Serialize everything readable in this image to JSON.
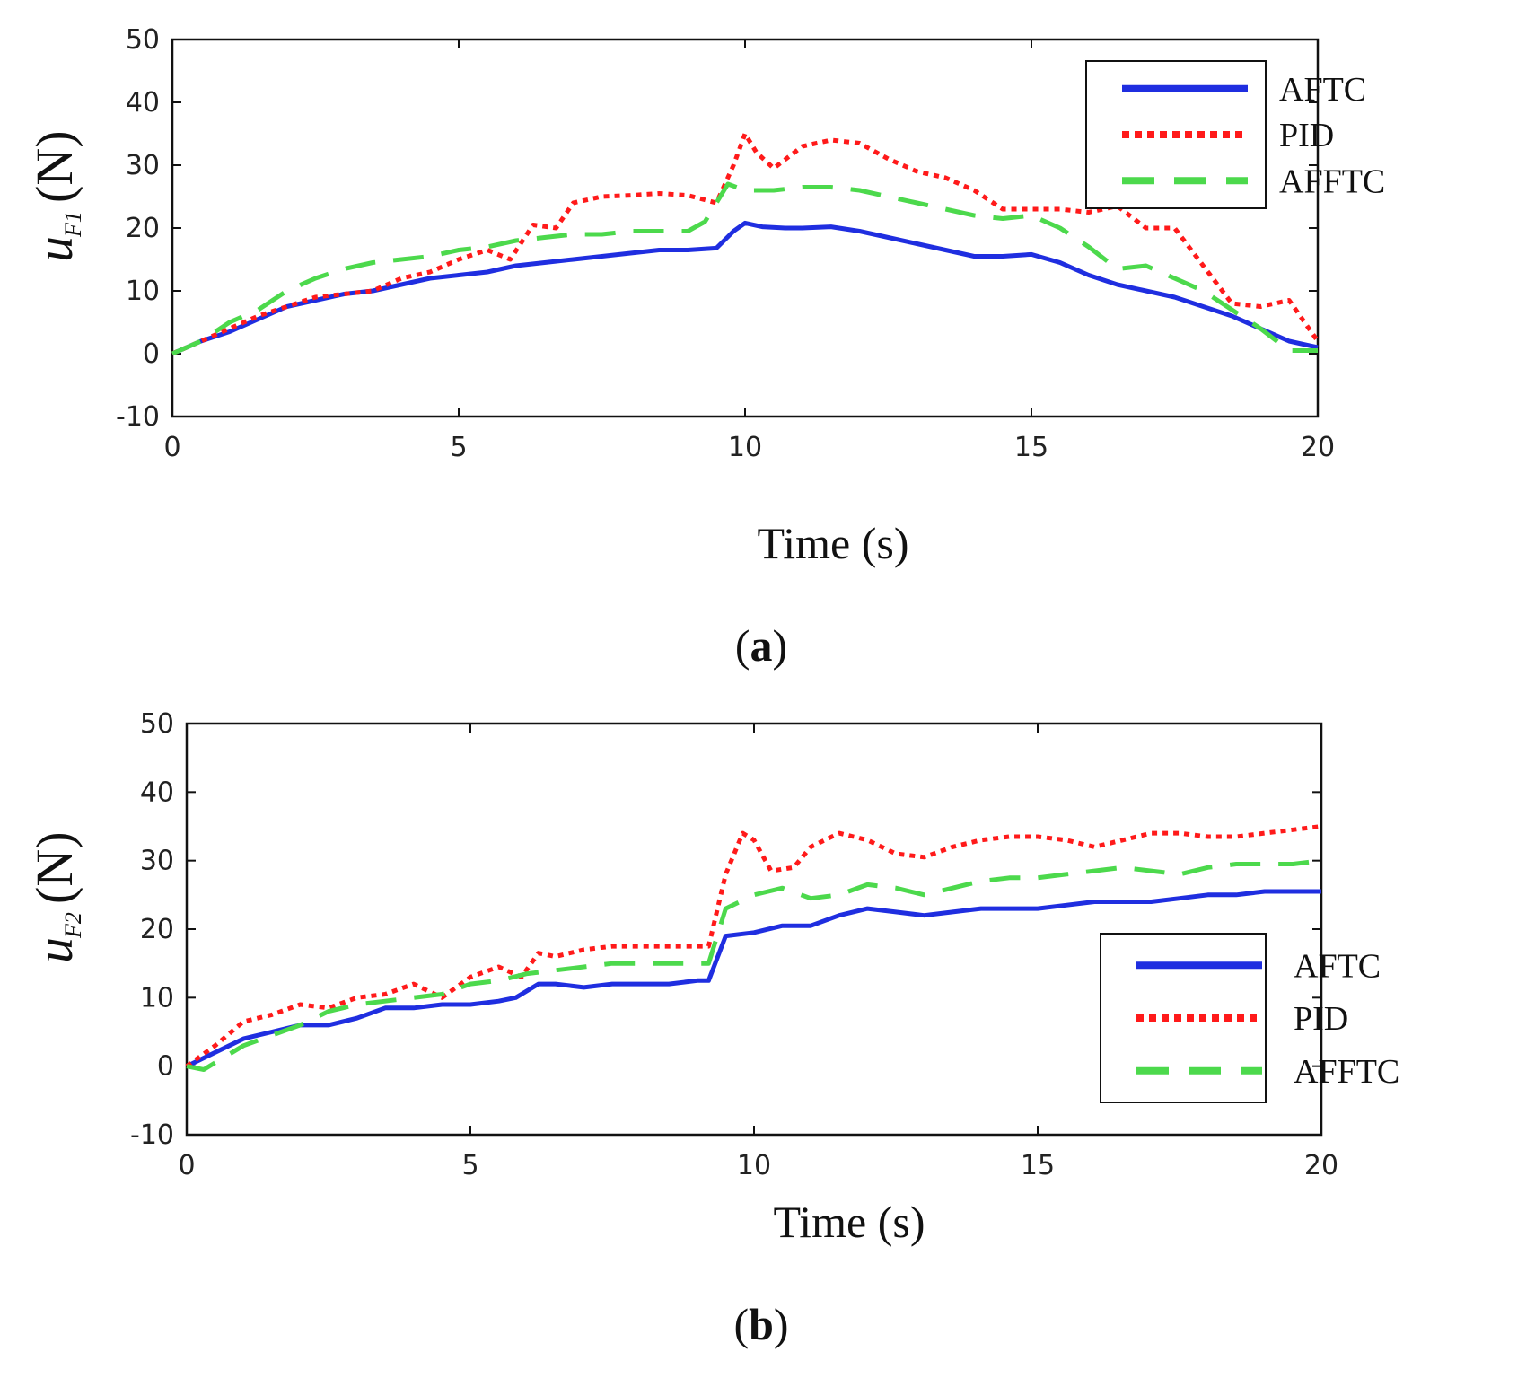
{
  "chart_data": [
    {
      "type": "line",
      "panel_label": "a",
      "ylabel_main": "u",
      "ylabel_sub": "F1",
      "ylabel_unit": "(N)",
      "xlabel": "Time (s)",
      "xlim": [
        0,
        20
      ],
      "ylim": [
        -10,
        50
      ],
      "xticks": [
        0,
        5,
        10,
        15,
        20
      ],
      "yticks": [
        -10,
        0,
        10,
        20,
        30,
        40,
        50
      ],
      "legend_position": "top-right",
      "series": [
        {
          "name": "AFTC",
          "color": "#1f2ee0",
          "style": "solid",
          "x": [
            0,
            0.5,
            1,
            1.5,
            2,
            2.5,
            3,
            3.5,
            4,
            4.5,
            5,
            5.5,
            6,
            6.5,
            7,
            7.5,
            8,
            8.5,
            9,
            9.5,
            9.8,
            10,
            10.3,
            10.7,
            11,
            11.5,
            12,
            12.5,
            13,
            13.5,
            14,
            14.5,
            15,
            15.5,
            16,
            16.5,
            17,
            17.5,
            18,
            18.5,
            19,
            19.5,
            20
          ],
          "y": [
            0,
            2,
            3.5,
            5.5,
            7.5,
            8.5,
            9.5,
            10,
            11,
            12,
            12.5,
            13,
            14,
            14.5,
            15,
            15.5,
            16,
            16.5,
            16.5,
            16.8,
            19.5,
            20.8,
            20.2,
            20,
            20,
            20.2,
            19.5,
            18.5,
            17.5,
            16.5,
            15.5,
            15.5,
            15.8,
            14.5,
            12.5,
            11,
            10,
            9,
            7.5,
            6,
            4,
            2,
            1
          ]
        },
        {
          "name": "PID",
          "color": "#ff1a1a",
          "style": "dotted",
          "x": [
            0,
            0.5,
            1,
            1.5,
            2,
            2.5,
            3,
            3.5,
            4,
            4.5,
            5,
            5.5,
            5.9,
            6.3,
            6.7,
            7,
            7.5,
            8,
            8.5,
            9,
            9.5,
            9.8,
            10,
            10.2,
            10.5,
            11,
            11.5,
            12,
            12.5,
            13,
            13.5,
            14,
            14.5,
            15,
            15.5,
            16,
            16.5,
            17,
            17.5,
            18,
            18.5,
            19,
            19.5,
            20
          ],
          "y": [
            0,
            2,
            4,
            6,
            7.5,
            9,
            9.5,
            10,
            12,
            13,
            15,
            16.5,
            15,
            20.5,
            20,
            24,
            25,
            25.2,
            25.5,
            25.2,
            24,
            30,
            35,
            32,
            29.5,
            33,
            34,
            33.5,
            31,
            29,
            28,
            26,
            23,
            23,
            23,
            22.5,
            23.5,
            20,
            20,
            14,
            8,
            7.5,
            8.5,
            2
          ]
        },
        {
          "name": "AFFTC",
          "color": "#4cd94c",
          "style": "dashed",
          "x": [
            0,
            0.5,
            1,
            1.5,
            2,
            2.5,
            3,
            3.5,
            4,
            4.5,
            5,
            5.5,
            6,
            6.5,
            7,
            7.5,
            8,
            8.5,
            9,
            9.3,
            9.7,
            10,
            10.5,
            11,
            11.5,
            12,
            12.5,
            13,
            13.5,
            14,
            14.5,
            15,
            15.5,
            16,
            16.5,
            17,
            17.5,
            18,
            18.5,
            19,
            19.5,
            20
          ],
          "y": [
            0,
            2,
            5,
            7,
            10,
            12,
            13.5,
            14.5,
            15,
            15.5,
            16.5,
            17,
            18,
            18.5,
            19,
            19,
            19.5,
            19.5,
            19.5,
            21,
            27,
            26,
            26,
            26.5,
            26.5,
            26,
            25,
            24,
            23,
            22,
            21.5,
            22,
            20,
            17,
            13.5,
            14,
            12,
            10,
            7,
            4,
            0.5,
            0.5
          ]
        }
      ]
    },
    {
      "type": "line",
      "panel_label": "b",
      "ylabel_main": "u",
      "ylabel_sub": "F2",
      "ylabel_unit": "(N)",
      "xlabel": "Time (s)",
      "xlim": [
        0,
        20
      ],
      "ylim": [
        -10,
        50
      ],
      "xticks": [
        0,
        5,
        10,
        15,
        20
      ],
      "yticks": [
        -10,
        0,
        10,
        20,
        30,
        40,
        50
      ],
      "legend_position": "lower-right",
      "series": [
        {
          "name": "AFTC",
          "color": "#1f2ee0",
          "style": "solid",
          "x": [
            0,
            0.5,
            1,
            1.5,
            2,
            2.5,
            3,
            3.5,
            4,
            4.5,
            5,
            5.5,
            5.8,
            6.2,
            6.5,
            7,
            7.5,
            8,
            8.5,
            9,
            9.2,
            9.5,
            10,
            10.5,
            11,
            11.5,
            12,
            12.5,
            13,
            13.5,
            14,
            14.5,
            15,
            15.5,
            16,
            16.5,
            17,
            17.5,
            18,
            18.5,
            19,
            19.5,
            20
          ],
          "y": [
            0,
            2,
            4,
            5,
            6,
            6,
            7,
            8.5,
            8.5,
            9,
            9,
            9.5,
            10,
            12,
            12,
            11.5,
            12,
            12,
            12,
            12.5,
            12.5,
            19,
            19.5,
            20.5,
            20.5,
            22,
            23,
            22.5,
            22,
            22.5,
            23,
            23,
            23,
            23.5,
            24,
            24,
            24,
            24.5,
            25,
            25,
            25.5,
            25.5,
            25.5
          ]
        },
        {
          "name": "PID",
          "color": "#ff1a1a",
          "style": "dotted",
          "x": [
            0,
            0.5,
            1,
            1.5,
            2,
            2.5,
            3,
            3.5,
            4,
            4.5,
            5,
            5.5,
            5.9,
            6.2,
            6.5,
            7,
            7.5,
            8,
            8.5,
            9,
            9.2,
            9.5,
            9.8,
            10,
            10.3,
            10.7,
            11,
            11.5,
            12,
            12.5,
            13,
            13.5,
            14,
            14.5,
            15,
            15.5,
            16,
            16.5,
            17,
            17.5,
            18,
            18.5,
            19,
            19.5,
            20
          ],
          "y": [
            0,
            3,
            6.5,
            7.5,
            9,
            8.5,
            10,
            10.5,
            12,
            10,
            13,
            14.5,
            13,
            16.5,
            16,
            17,
            17.5,
            17.5,
            17.5,
            17.5,
            17.5,
            28,
            34,
            33,
            28.5,
            29,
            32,
            34,
            33,
            31,
            30.5,
            32,
            33,
            33.5,
            33.5,
            33,
            32,
            33,
            34,
            34,
            33.5,
            33.5,
            34,
            34.5,
            35
          ]
        },
        {
          "name": "AFFTC",
          "color": "#4cd94c",
          "style": "dashed",
          "x": [
            0,
            0.3,
            0.6,
            1,
            1.5,
            2,
            2.5,
            3,
            3.5,
            4,
            4.5,
            5,
            5.5,
            6,
            6.5,
            7,
            7.5,
            8,
            8.5,
            9,
            9.2,
            9.5,
            10,
            10.5,
            11,
            11.5,
            12,
            12.5,
            13,
            13.5,
            14,
            14.5,
            15,
            15.5,
            16,
            16.5,
            17,
            17.5,
            18,
            18.5,
            19,
            19.5,
            20
          ],
          "y": [
            0,
            -0.5,
            1,
            3,
            4.5,
            6,
            8,
            9,
            9.5,
            10,
            10.5,
            12,
            12.5,
            13.5,
            14,
            14.5,
            15,
            15,
            15,
            15,
            15,
            23,
            25,
            26,
            24.5,
            25,
            26.5,
            26,
            25,
            26,
            27,
            27.5,
            27.5,
            28,
            28.5,
            29,
            28.5,
            28,
            29,
            29.5,
            29.5,
            29.5,
            30
          ]
        }
      ]
    }
  ]
}
